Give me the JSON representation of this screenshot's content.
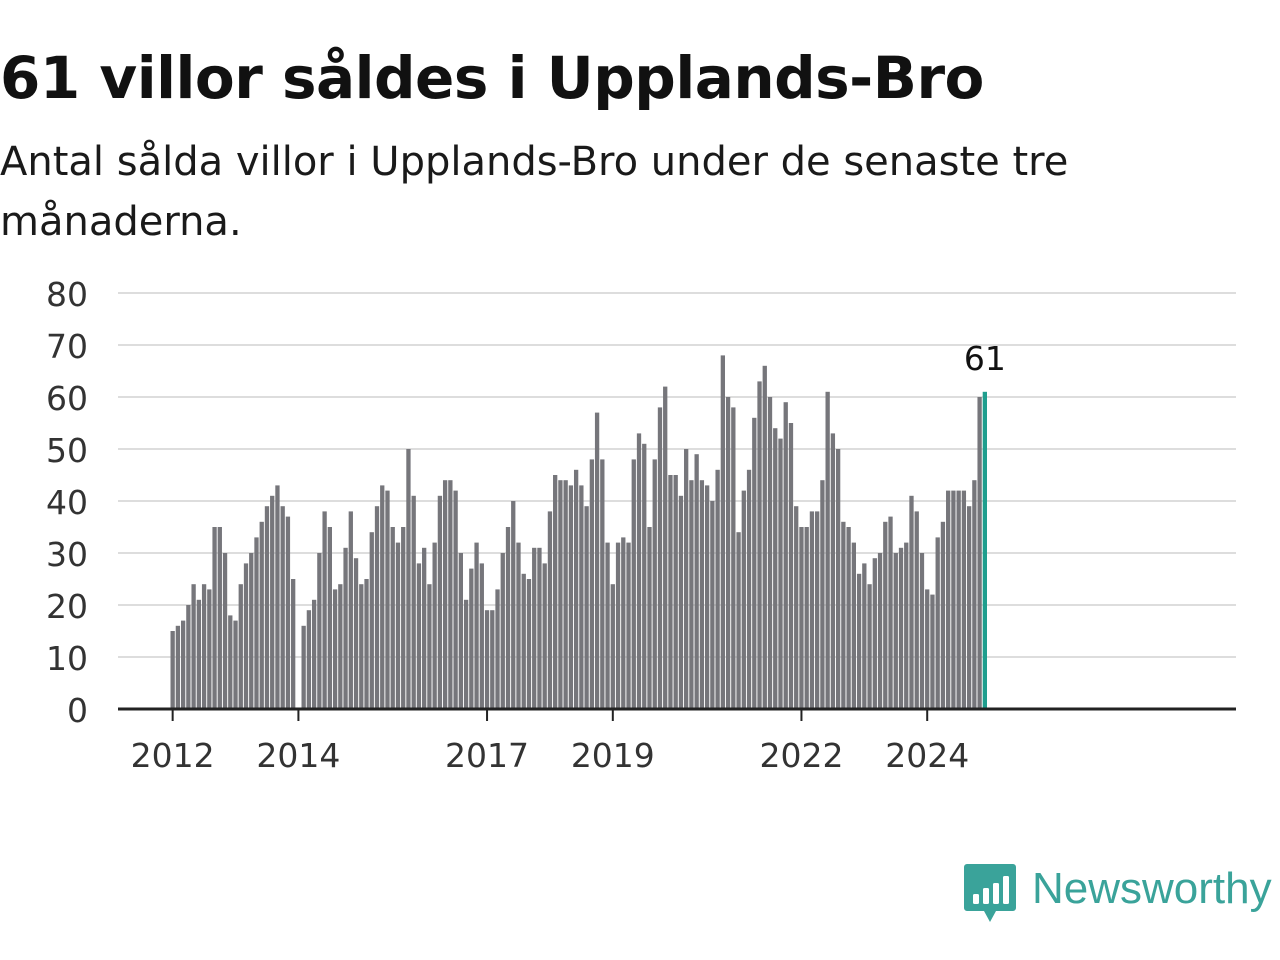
{
  "header": {
    "title": "61 villor såldes i Upplands-Bro",
    "subtitle": "Antal sålda villor i Upplands-Bro under de senaste tre månaderna."
  },
  "brand": {
    "name": "Newsworthy",
    "icon": "newsworthy-chart-bubble-icon",
    "color": "#3aa39a"
  },
  "colors": {
    "bar": "#76767b",
    "highlight": "#1f9e8e",
    "grid": "#dddddd",
    "axis": "#222222",
    "text": "#333333"
  },
  "chart_data": {
    "type": "bar",
    "title": "61 villor såldes i Upplands-Bro",
    "subtitle": "Antal sålda villor i Upplands-Bro under de senaste tre månaderna.",
    "xlabel": "",
    "ylabel": "",
    "ylim": [
      0,
      80
    ],
    "yticks": [
      0,
      10,
      20,
      30,
      40,
      50,
      60,
      70,
      80
    ],
    "xticks": [
      "2012",
      "2014",
      "2017",
      "2019",
      "2022",
      "2024"
    ],
    "grid": true,
    "legend": "none",
    "start_month": "2012-01",
    "values": [
      15,
      16,
      17,
      20,
      24,
      21,
      24,
      23,
      35,
      35,
      30,
      18,
      17,
      24,
      28,
      30,
      33,
      36,
      39,
      41,
      43,
      39,
      37,
      25,
      null,
      16,
      19,
      21,
      30,
      38,
      35,
      23,
      24,
      31,
      38,
      29,
      24,
      25,
      34,
      39,
      43,
      42,
      35,
      32,
      35,
      50,
      41,
      28,
      31,
      24,
      32,
      41,
      44,
      44,
      42,
      30,
      21,
      27,
      32,
      28,
      19,
      19,
      23,
      30,
      35,
      40,
      32,
      26,
      25,
      31,
      31,
      28,
      38,
      45,
      44,
      44,
      43,
      46,
      43,
      39,
      48,
      57,
      48,
      32,
      24,
      32,
      33,
      32,
      48,
      53,
      51,
      35,
      48,
      58,
      62,
      45,
      45,
      41,
      50,
      44,
      49,
      44,
      43,
      40,
      46,
      68,
      60,
      58,
      34,
      42,
      46,
      56,
      63,
      66,
      60,
      54,
      52,
      59,
      55,
      39,
      35,
      35,
      38,
      38,
      44,
      61,
      53,
      50,
      36,
      35,
      32,
      26,
      28,
      24,
      29,
      30,
      36,
      37,
      30,
      31,
      32,
      41,
      38,
      30,
      23,
      22,
      33,
      36,
      42,
      42,
      42,
      42,
      39,
      44,
      60,
      61
    ],
    "highlight_value_label": "61"
  }
}
